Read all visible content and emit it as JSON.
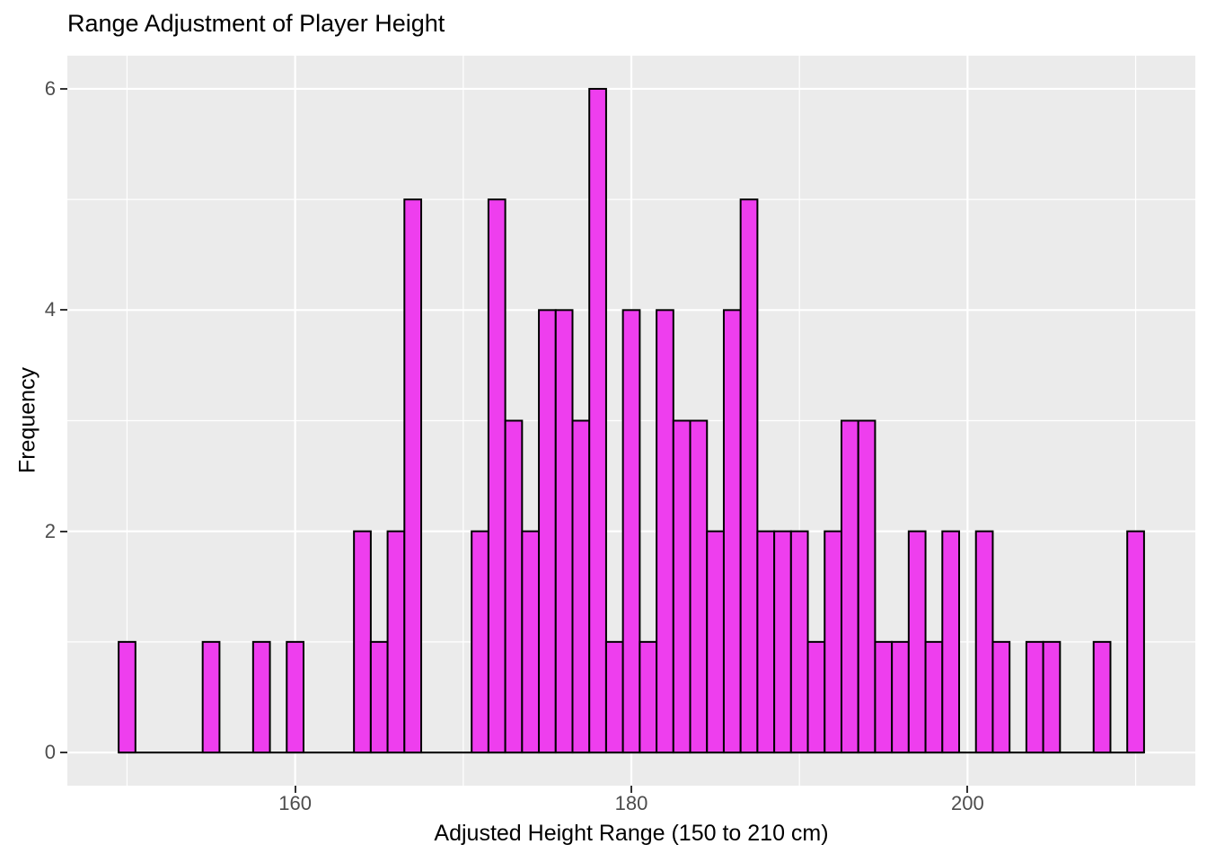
{
  "chart_data": {
    "type": "bar",
    "subtype": "histogram",
    "title": "Range Adjustment of Player Height",
    "xlabel": "Adjusted Height Range (150 to 210 cm)",
    "ylabel": "Frequency",
    "bin_width": 1,
    "bin_centers": [
      150,
      151,
      152,
      153,
      154,
      155,
      156,
      157,
      158,
      159,
      160,
      161,
      162,
      163,
      164,
      165,
      166,
      167,
      168,
      169,
      170,
      171,
      172,
      173,
      174,
      175,
      176,
      177,
      178,
      179,
      180,
      181,
      182,
      183,
      184,
      185,
      186,
      187,
      188,
      189,
      190,
      191,
      192,
      193,
      194,
      195,
      196,
      197,
      198,
      199,
      200,
      201,
      202,
      203,
      204,
      205,
      206,
      207,
      208,
      209,
      210
    ],
    "counts": [
      1,
      0,
      0,
      0,
      0,
      1,
      0,
      0,
      1,
      0,
      1,
      0,
      0,
      0,
      2,
      1,
      2,
      5,
      0,
      0,
      0,
      2,
      5,
      3,
      2,
      4,
      4,
      3,
      6,
      1,
      4,
      1,
      4,
      3,
      3,
      2,
      4,
      5,
      2,
      2,
      2,
      1,
      2,
      3,
      3,
      1,
      1,
      2,
      1,
      2,
      0,
      2,
      1,
      0,
      1,
      1,
      0,
      0,
      1,
      0,
      2
    ],
    "total_count": 100,
    "x_ticks": [
      160,
      180,
      200
    ],
    "x_tick_labels": [
      "160",
      "180",
      "200"
    ],
    "y_ticks": [
      0,
      2,
      4,
      6
    ],
    "y_tick_labels": [
      "0",
      "2",
      "4",
      "6"
    ],
    "x_minor_gridlines": [
      150,
      170,
      190,
      210
    ],
    "y_minor_gridlines": [
      1,
      3,
      5
    ],
    "xlim": [
      146.45,
      213.55
    ],
    "ylim": [
      -0.3,
      6.3
    ],
    "legend": "none",
    "grid": "on",
    "colors": {
      "bar_fill": "#EE3EEE",
      "bar_stroke": "#000000",
      "panel_bg": "#EBEBEB",
      "grid_color": "#FFFFFF",
      "tick_mark_color": "#333333",
      "tick_label_color": "#4D4D4D",
      "title_color": "#000000",
      "axis_title_color": "#000000",
      "baseline_color": "#000000"
    }
  }
}
